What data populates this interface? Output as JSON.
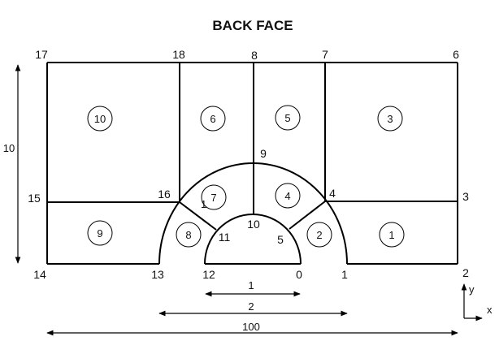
{
  "title": "BACK FACE",
  "vertices": [
    "0",
    "1",
    "2",
    "3",
    "4",
    "5",
    "6",
    "7",
    "8",
    "9",
    "10",
    "11",
    "12",
    "13",
    "14",
    "15",
    "16",
    "17",
    "18"
  ],
  "blocks": [
    "1",
    "2",
    "3",
    "4",
    "5",
    "6",
    "7",
    "8",
    "9",
    "10"
  ],
  "dimensions": {
    "inner": "1",
    "outer": "2",
    "total": "100",
    "height": "10"
  },
  "axes": {
    "x": "x",
    "y": "y"
  },
  "stray_text": "1"
}
